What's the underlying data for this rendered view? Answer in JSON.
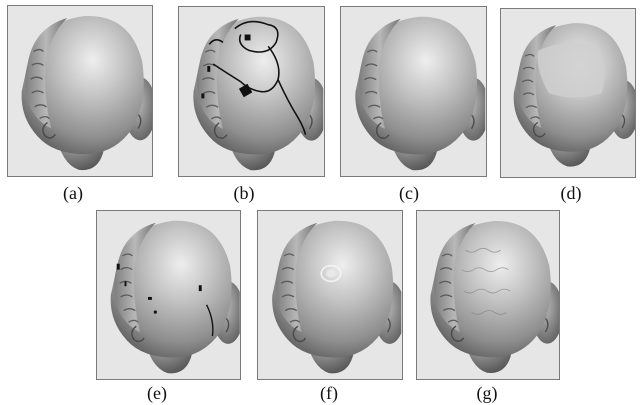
{
  "figure": {
    "panels": [
      {
        "id": "a",
        "caption": "(a)",
        "variant": "original"
      },
      {
        "id": "b",
        "caption": "(b)",
        "variant": "holes"
      },
      {
        "id": "c",
        "caption": "(c)",
        "variant": "smooth"
      },
      {
        "id": "d",
        "caption": "(d)",
        "variant": "flat"
      },
      {
        "id": "e",
        "caption": "(e)",
        "variant": "sparse-holes"
      },
      {
        "id": "f",
        "caption": "(f)",
        "variant": "bump"
      },
      {
        "id": "g",
        "caption": "(g)",
        "variant": "rough"
      }
    ],
    "colors": {
      "panel_bg": "#e6e6e6",
      "surface_light": "#dcdcdc",
      "surface_mid": "#a8a8a8",
      "surface_dark": "#5e5e5e",
      "hole": "#111111"
    }
  }
}
